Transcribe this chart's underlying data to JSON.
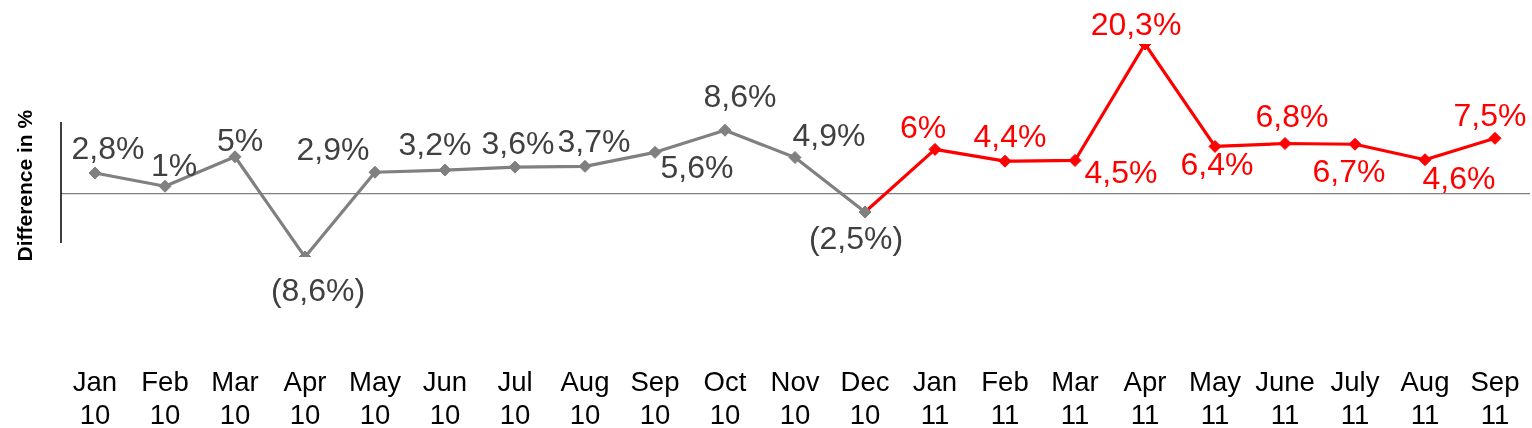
{
  "chart_data": {
    "type": "line",
    "ylabel": "Difference in %",
    "categories": [
      "Jan 10",
      "Feb 10",
      "Mar 10",
      "Apr 10",
      "May 10",
      "Jun 10",
      "Jul 10",
      "Aug 10",
      "Sep 10",
      "Oct 10",
      "Nov 10",
      "Dec 10",
      "Jan 11",
      "Feb 11",
      "Mar 11",
      "Apr 11",
      "May 11",
      "June 11",
      "July 11",
      "Aug 11",
      "Sep 11"
    ],
    "series": [
      {
        "color": "#808080",
        "values": [
          2.8,
          1,
          5,
          -8.6,
          2.9,
          3.2,
          3.6,
          3.7,
          5.6,
          8.6,
          4.9,
          -2.5,
          null,
          null,
          null,
          null,
          null,
          null,
          null,
          null,
          null
        ],
        "value_labels": [
          "2,8%",
          "1%",
          "5%",
          "(8,6%)",
          "2,9%",
          "3,2%",
          "3,6%",
          "3,7%",
          "5,6%",
          "8,6%",
          "4,9%",
          "(2,5%)",
          null,
          null,
          null,
          null,
          null,
          null,
          null,
          null,
          null
        ]
      },
      {
        "color": "#ff0000",
        "values": [
          null,
          null,
          null,
          null,
          null,
          null,
          null,
          null,
          null,
          null,
          null,
          -2.5,
          6,
          4.4,
          4.5,
          20.3,
          6.4,
          6.8,
          6.7,
          4.6,
          7.5
        ],
        "value_labels": [
          null,
          null,
          null,
          null,
          null,
          null,
          null,
          null,
          null,
          null,
          null,
          null,
          "6%",
          "4,4%",
          "4,5%",
          "20,3%",
          "6,4%",
          "6,8%",
          "6,7%",
          "4,6%",
          "7,5%"
        ]
      }
    ],
    "marker": "diamond",
    "ref_lines": [
      {
        "axis": "y",
        "value": 0,
        "color": "#808080"
      }
    ]
  }
}
